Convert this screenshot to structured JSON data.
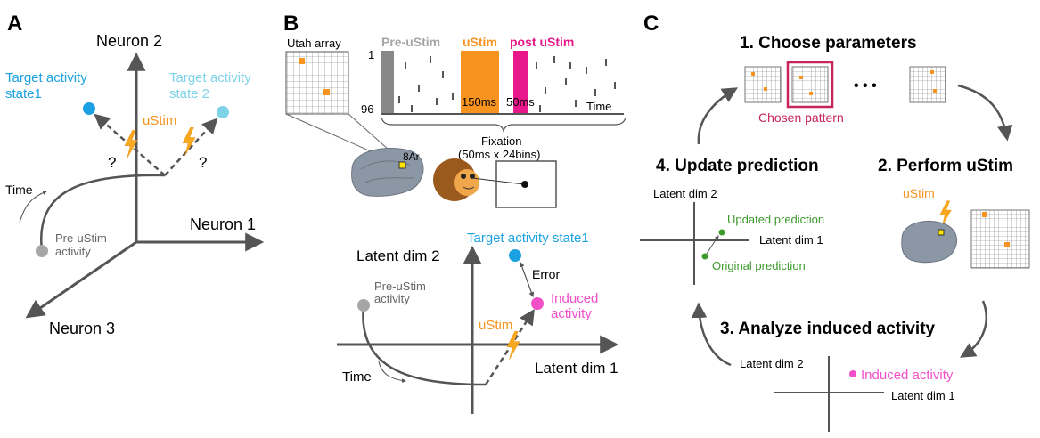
{
  "colors": {
    "axis": "#5a5a5a",
    "cyan_dark": "#1ba1e2",
    "cyan_light": "#7fd3e8",
    "orange": "#f7931e",
    "magenta": "#e8178a",
    "pink": "#f04fc8",
    "gray": "#a6a6a6",
    "green": "#3c9a2b",
    "crimson": "#c8245c",
    "brain": "#8c97a6"
  },
  "panel_a": {
    "letter": "A",
    "neuron2": "Neuron 2",
    "neuron1": "Neuron 1",
    "neuron3": "Neuron 3",
    "target1_l1": "Target activity",
    "target1_l2": "state1",
    "target2_l1": "Target activity",
    "target2_l2": "state 2",
    "ustim": "uStim",
    "q1": "?",
    "q2": "?",
    "time": "Time",
    "pre_l1": "Pre-uStim",
    "pre_l2": "activity"
  },
  "panel_b": {
    "letter": "B",
    "utah": "Utah array",
    "pre_ustim": "Pre-uStim",
    "ustim": "uStim",
    "post_ustim": "post uStim",
    "row_top": "1",
    "row_bottom": "96",
    "dur1": "150ms",
    "dur2": "50ms",
    "time": "Time",
    "fixation_l1": "Fixation",
    "fixation_l2": "(50ms x 24bins)",
    "area": "8Ar",
    "latent2": "Latent dim 2",
    "latent1": "Latent dim 1",
    "target": "Target activity state1",
    "error": "Error",
    "induced_l1": "Induced",
    "induced_l2": "activity",
    "pre_l1": "Pre-uStim",
    "pre_l2": "activity",
    "ustim2": "uStim",
    "time2": "Time"
  },
  "panel_c": {
    "letter": "C",
    "step1": "1. Choose parameters",
    "chosen": "Chosen pattern",
    "ellipsis": "• • •",
    "step2": "2. Perform uStim",
    "ustim": "uStim",
    "step3": "3. Analyze induced activity",
    "latent2_a": "Latent dim 2",
    "induced": "Induced activity",
    "latent1_a": "Latent dim 1",
    "step4": "4. Update prediction",
    "latent2_b": "Latent dim 2",
    "latent1_b": "Latent dim 1",
    "updated": "Updated prediction",
    "original": "Original prediction"
  }
}
